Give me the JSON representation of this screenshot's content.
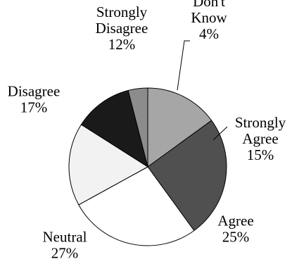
{
  "chart_data": {
    "type": "pie",
    "start_angle_deg": 0,
    "direction": "clockwise",
    "slices": [
      {
        "label": "Strongly Agree",
        "percent_label": "15%",
        "value": 15,
        "color": "#a6a6a6",
        "label_lines": [
          "Strongly",
          "Agree"
        ]
      },
      {
        "label": "Agree",
        "percent_label": "25%",
        "value": 25,
        "color": "#505050",
        "label_lines": [
          "Agree"
        ]
      },
      {
        "label": "Neutral",
        "percent_label": "27%",
        "value": 27,
        "color": "#ffffff",
        "label_lines": [
          "Neutral"
        ]
      },
      {
        "label": "Disagree",
        "percent_label": "17%",
        "value": 17,
        "color": "#f2f2f2",
        "label_lines": [
          "Disagree"
        ]
      },
      {
        "label": "Strongly Disagree",
        "percent_label": "12%",
        "value": 12,
        "color": "#1a1a1a",
        "label_lines": [
          "Strongly",
          "Disagree"
        ]
      },
      {
        "label": "Don't Know",
        "percent_label": "4%",
        "value": 4,
        "color": "#8c8c8c",
        "label_lines": [
          "Don't",
          "Know"
        ]
      }
    ]
  }
}
